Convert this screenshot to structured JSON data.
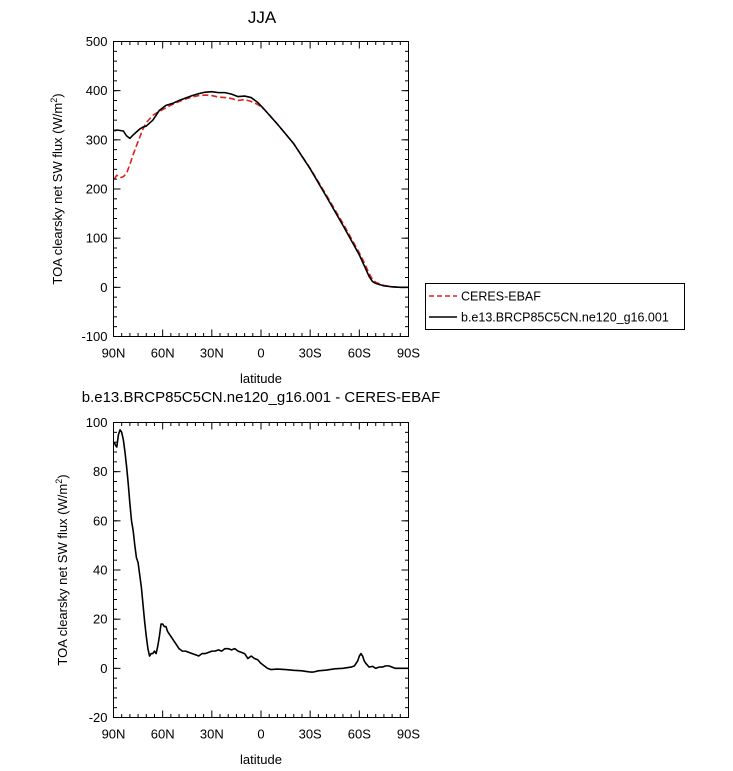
{
  "chart_data": [
    {
      "type": "line",
      "title": "JJA",
      "xlabel": "latitude",
      "ylabel_main": "TOA clearsky net SW flux (W/m",
      "ylabel_sup": "2",
      "ylabel_close": ")",
      "xlim": [
        90,
        -90
      ],
      "ylim": [
        -100,
        500
      ],
      "x_ticks": [
        90,
        60,
        30,
        0,
        -30,
        -60,
        -90
      ],
      "x_tick_labels": [
        "90N",
        "60N",
        "30N",
        "0",
        "30S",
        "60S",
        "90S"
      ],
      "y_ticks": [
        -100,
        0,
        100,
        200,
        300,
        400,
        500
      ],
      "y_tick_labels": [
        "-100",
        "0",
        "100",
        "200",
        "300",
        "400",
        "500"
      ],
      "legend_position": "right",
      "series": [
        {
          "name": "CERES-EBAF",
          "color": "#e0201b",
          "dash": "dashed",
          "x": [
            89.5,
            88,
            86,
            84,
            82,
            80,
            78,
            76,
            74,
            72,
            70,
            66,
            62,
            58,
            54,
            50,
            46,
            42,
            38,
            34,
            30,
            26,
            22,
            18,
            14,
            10,
            6,
            2,
            -2,
            -10,
            -20,
            -30,
            -40,
            -50,
            -55,
            -60,
            -63,
            -66,
            -68,
            -70,
            -75,
            -80,
            -85,
            -90
          ],
          "y": [
            220,
            228,
            223,
            225,
            232,
            250,
            270,
            288,
            305,
            322,
            335,
            350,
            358,
            365,
            372,
            378,
            383,
            387,
            390,
            391,
            390,
            387,
            386,
            384,
            380,
            382,
            378,
            372,
            362,
            332,
            292,
            242,
            187,
            130,
            100,
            70,
            50,
            28,
            16,
            10,
            4,
            1,
            0,
            0
          ]
        },
        {
          "name": "b.e13.BRCP85C5CN.ne120_g16.001",
          "color": "#000000",
          "dash": "solid",
          "x": [
            89.5,
            88,
            86,
            84,
            82,
            80,
            78,
            76,
            74,
            72,
            70,
            66,
            62,
            58,
            54,
            50,
            46,
            42,
            38,
            34,
            30,
            26,
            22,
            18,
            14,
            10,
            6,
            2,
            -2,
            -10,
            -20,
            -30,
            -40,
            -50,
            -55,
            -60,
            -63,
            -66,
            -68,
            -70,
            -75,
            -80,
            -85,
            -90
          ],
          "y": [
            318,
            320,
            319,
            318,
            308,
            303,
            310,
            316,
            322,
            326,
            328,
            340,
            360,
            370,
            374,
            380,
            385,
            390,
            394,
            397,
            398,
            396,
            396,
            393,
            388,
            389,
            386,
            376,
            362,
            332,
            292,
            241,
            184,
            126,
            96,
            66,
            44,
            22,
            12,
            8,
            3,
            1,
            0,
            0
          ]
        }
      ]
    },
    {
      "type": "line",
      "title": "b.e13.BRCP85C5CN.ne120_g16.001 - CERES-EBAF",
      "xlabel": "latitude",
      "ylabel_main": "TOA clearsky net SW flux (W/m",
      "ylabel_sup": "2",
      "ylabel_close": ")",
      "xlim": [
        90,
        -90
      ],
      "ylim": [
        -20,
        100
      ],
      "x_ticks": [
        90,
        60,
        30,
        0,
        -30,
        -60,
        -90
      ],
      "x_tick_labels": [
        "90N",
        "60N",
        "30N",
        "0",
        "30S",
        "60S",
        "90S"
      ],
      "y_ticks": [
        -20,
        0,
        20,
        40,
        60,
        80,
        100
      ],
      "y_tick_labels": [
        "-20",
        "0",
        "20",
        "40",
        "60",
        "80",
        "100"
      ],
      "series": [
        {
          "color": "#000000",
          "dash": "solid",
          "x": [
            89.5,
            89,
            88,
            87,
            86,
            85,
            84,
            83,
            82,
            81,
            80,
            79,
            78,
            77,
            76,
            75,
            74,
            73,
            72,
            71,
            70,
            69,
            68,
            67,
            66,
            65,
            64,
            63,
            62,
            61,
            60,
            59,
            58,
            57,
            56,
            55,
            54,
            53,
            52,
            51,
            50,
            48,
            46,
            44,
            42,
            40,
            38,
            36,
            34,
            32,
            30,
            28,
            26,
            24,
            22,
            20,
            18,
            16,
            14,
            12,
            10,
            8,
            6,
            4,
            2,
            0,
            -2,
            -4,
            -6,
            -10,
            -15,
            -20,
            -25,
            -28,
            -30,
            -32,
            -35,
            -40,
            -45,
            -50,
            -55,
            -57,
            -59,
            -60,
            -61,
            -62,
            -63,
            -64,
            -66,
            -68,
            -70,
            -72,
            -74,
            -76,
            -78,
            -80,
            -82,
            -84,
            -86,
            -88,
            -90
          ],
          "y": [
            92,
            91,
            90,
            95,
            97,
            96,
            93,
            88,
            82,
            75,
            67,
            60,
            56,
            50,
            45,
            43,
            38,
            33,
            26,
            19,
            13,
            8,
            5,
            6,
            6,
            7,
            6,
            9,
            13,
            18,
            18,
            17,
            17,
            15,
            14,
            13,
            12,
            11,
            10,
            9,
            8,
            7,
            7,
            6.5,
            6,
            5.5,
            5,
            6,
            6,
            6.5,
            7,
            7,
            7.5,
            7,
            8,
            8,
            7.5,
            8,
            7,
            6.5,
            6,
            4,
            5,
            4,
            3.5,
            2,
            1,
            0,
            -0.5,
            -0.3,
            -0.5,
            -0.8,
            -1,
            -1.3,
            -1.5,
            -1.5,
            -1,
            -0.7,
            -0.2,
            0,
            0.5,
            1,
            3,
            5,
            6,
            5,
            3,
            2,
            0.5,
            0.8,
            0,
            0.5,
            0.5,
            1,
            1,
            0.5,
            0,
            0,
            0,
            0,
            0
          ]
        }
      ]
    }
  ]
}
